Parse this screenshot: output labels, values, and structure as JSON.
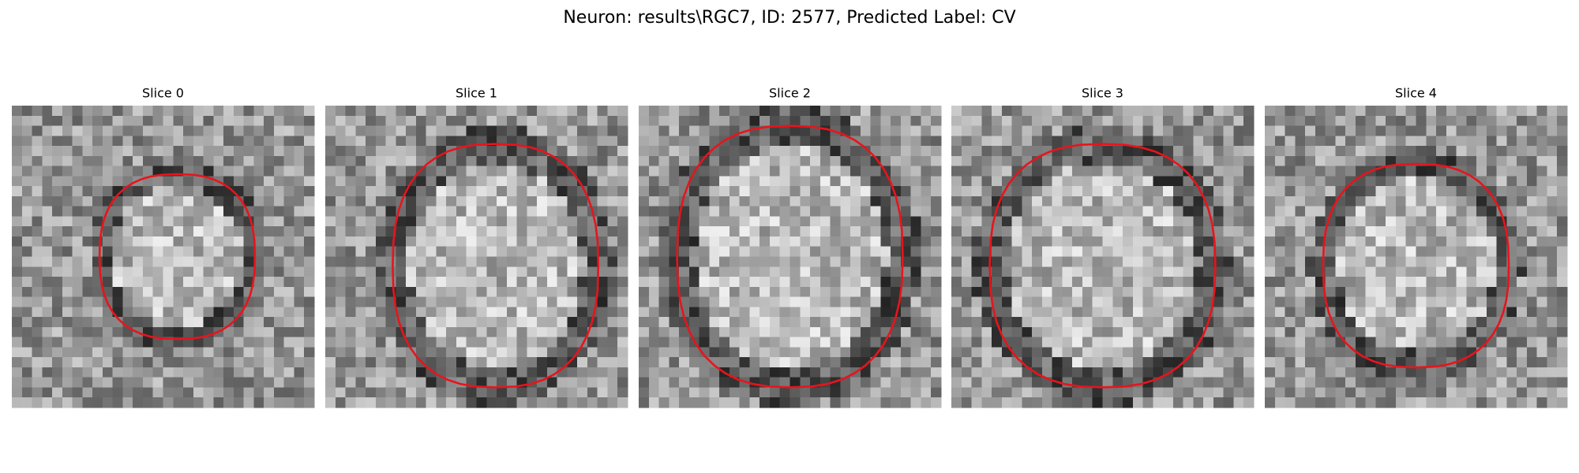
{
  "figure": {
    "title": "Neuron: results\\RGC7, ID: 2577, Predicted Label: CV",
    "panels": [
      {
        "title": "Slice 0"
      },
      {
        "title": "Slice 1"
      },
      {
        "title": "Slice 2"
      },
      {
        "title": "Slice 3"
      },
      {
        "title": "Slice 4"
      }
    ]
  }
}
